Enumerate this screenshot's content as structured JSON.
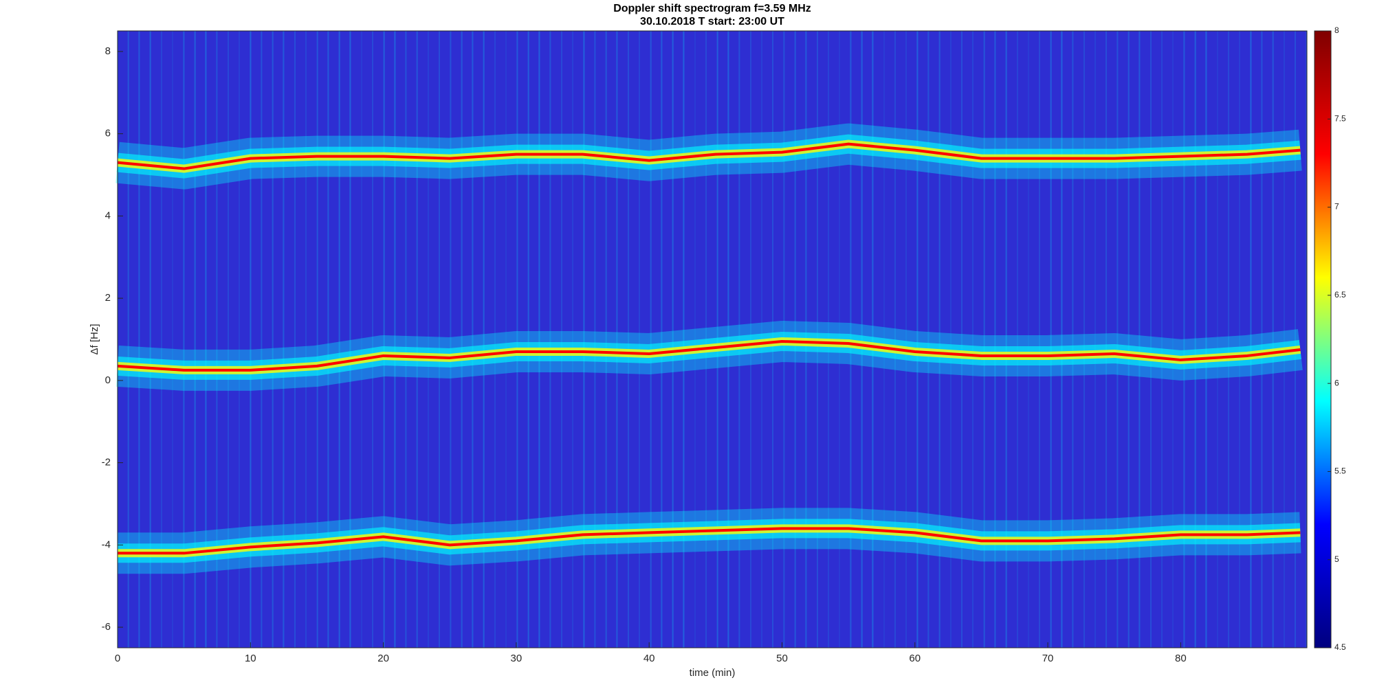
{
  "chart_data": {
    "type": "spectrogram",
    "title": "Doppler shift spectrogram f=3.59 MHz",
    "subtitle": "30.10.2018   T start: 23:00 UT",
    "x_label": "time (min)",
    "y_label": "Δf [Hz]",
    "xlim": [
      0,
      89.5
    ],
    "xticks": [
      0,
      10,
      20,
      30,
      40,
      50,
      60,
      70,
      80
    ],
    "ylim": [
      -6.5,
      8.5
    ],
    "yticks": [
      -6,
      -4,
      -2,
      0,
      2,
      4,
      6,
      8
    ],
    "colorbar_lim": [
      4.5,
      8
    ],
    "colorbar_ticks": [
      4.5,
      5,
      5.5,
      6,
      6.5,
      7,
      7.5,
      8
    ],
    "colormap": [
      "#00007f",
      "#0000ff",
      "#00ffff",
      "#ffff00",
      "#ff0000",
      "#7f0000"
    ],
    "x": [
      0,
      5,
      10,
      15,
      20,
      25,
      30,
      35,
      40,
      45,
      50,
      55,
      60,
      65,
      70,
      75,
      80,
      85,
      89
    ],
    "series": [
      {
        "color": "#ff0000",
        "values": [
          5.3,
          5.15,
          5.4,
          5.45,
          5.45,
          5.4,
          5.5,
          5.5,
          5.35,
          5.5,
          5.55,
          5.75,
          5.6,
          5.4,
          5.4,
          5.4,
          5.45,
          5.5,
          5.6
        ]
      },
      {
        "color": "#ff0000",
        "values": [
          0.35,
          0.25,
          0.25,
          0.35,
          0.6,
          0.55,
          0.7,
          0.7,
          0.65,
          0.8,
          0.95,
          0.9,
          0.7,
          0.6,
          0.6,
          0.65,
          0.5,
          0.6,
          0.75
        ]
      },
      {
        "color": "#ff0000",
        "values": [
          -4.2,
          -4.2,
          -4.05,
          -3.95,
          -3.8,
          -4.0,
          -3.9,
          -3.75,
          -3.7,
          -3.65,
          -3.6,
          -3.6,
          -3.7,
          -3.9,
          -3.9,
          -3.85,
          -3.75,
          -3.75,
          -3.7
        ]
      }
    ]
  }
}
